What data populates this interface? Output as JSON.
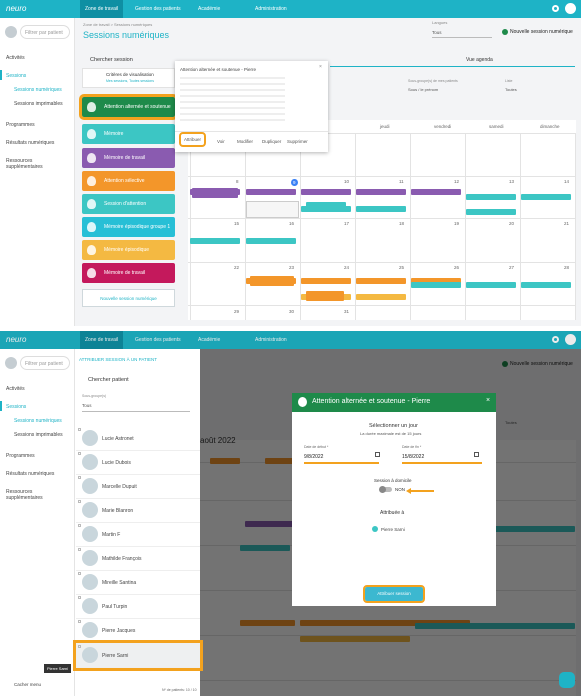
{
  "top": {
    "logo": "neuro",
    "nav": [
      "Zone de travail",
      "Gestion des patients",
      "Académie",
      "Administration"
    ],
    "search_patient": "Filtrer par patient",
    "sidebar": [
      "Activités",
      "Sessions",
      "Sessions numériques",
      "Sessions imprimables",
      "Programmes",
      "Résultats numériques",
      "Ressources supplémentaires"
    ],
    "breadcrumb": "Zone de travail > Sessions numériques",
    "title": "Sessions numériques",
    "language_label": "Langues",
    "language_value": "Tous",
    "new_session": "Nouvelle session numérique",
    "search_session": "Chercher session",
    "criteria": "Critères de visualisation",
    "criteria_sub": "Mes sessions, Toutes sessions",
    "sessions": [
      {
        "name": "Attention alternée et soutenue",
        "color": "#1e8a4a"
      },
      {
        "name": "Mémoire",
        "color": "#3cc6c4"
      },
      {
        "name": "Mémoire de travail",
        "color": "#8a5bb0"
      },
      {
        "name": "Attention sélective",
        "color": "#f3962a"
      },
      {
        "name": "Session d'attention",
        "color": "#3cc6c4"
      },
      {
        "name": "Mémoire épisodique groupe 1",
        "color": "#27bfd6"
      },
      {
        "name": "Mémoire épisodique",
        "color": "#f4b942"
      },
      {
        "name": "Mémoire de travail",
        "color": "#c4195c"
      }
    ],
    "new_session_button": "Nouvelle session numérique",
    "popup": {
      "title": "Attention alternée et soutenue - Pierre",
      "actions": [
        "Attribuer",
        "Voir",
        "Modifier",
        "Dupliquer",
        "Supprimer"
      ]
    },
    "agenda": "Vue agenda",
    "filter_groups": "Sous-groupe(s) de mes patients",
    "filter_groups_value": "Sous / le prénom",
    "filter_list": "Liste",
    "filter_list_value": "Toutes",
    "days": [
      "jeudi",
      "vendredi",
      "samedi",
      "dimanche"
    ],
    "dates": [
      [
        "8",
        "9",
        "10",
        "11",
        "12",
        "13",
        "14"
      ],
      [
        "15",
        "16",
        "17",
        "18",
        "19",
        "20",
        "21"
      ],
      [
        "22",
        "23",
        "24",
        "25",
        "26",
        "27",
        "28"
      ],
      [
        "29",
        "30",
        "31"
      ]
    ]
  },
  "bottom": {
    "assign_title": "ATTRIBUER SESSION À UN PATIENT",
    "search_patient": "Chercher patient",
    "subgroup_label": "Sous-groupe(s)",
    "subgroup_value": "Tous",
    "patients": [
      "Lucie Astronet",
      "Lucie Dubois",
      "Marcelle Dupuit",
      "Marie Blanron",
      "Martin F",
      "Mathilde François",
      "Mireille Santina",
      "Paul Turpin",
      "Pierre Jacques",
      "Pierre Sarni"
    ],
    "tooltip": "Pierre Sarni",
    "hide_menu": "Cacher menu",
    "patient_count": "Nº de patients: 10 / 10",
    "month": "août 2022",
    "modal": {
      "title": "Attention alternée et soutenue - Pierre",
      "select_day": "Sélectionner un jour",
      "max_duration": "La durée maximale est de 15 jours",
      "start_label": "Date de début *",
      "start_value": "9/8/2022",
      "end_label": "Date de fin *",
      "end_value": "15/8/2022",
      "home_session": "Session à domicile",
      "home_value": "NON",
      "assigned_to": "Attribuée à",
      "assigned_patient": "Pierre Sarni",
      "assign_button": "Attribuer session"
    }
  }
}
